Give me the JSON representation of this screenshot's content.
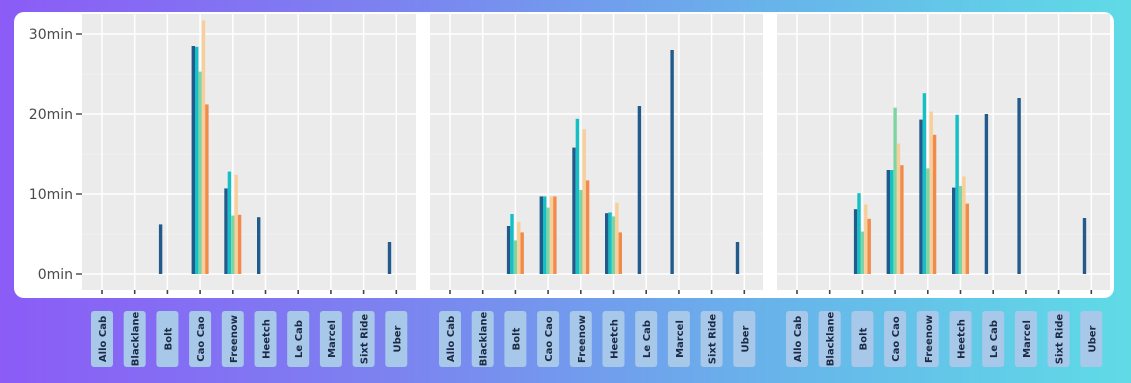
{
  "chart_data": {
    "type": "bar",
    "categories": [
      "Allo Cab",
      "Blacklane",
      "Bolt",
      "Cao Cao",
      "Freenow",
      "Heetch",
      "Le Cab",
      "Marcel",
      "Sixt Ride",
      "Uber"
    ],
    "y_ticks": [
      "0min",
      "10min",
      "20min",
      "30min"
    ],
    "ylim": [
      -2,
      32.5
    ],
    "grid": true,
    "series_colors": [
      "#235a8c",
      "#12c0c6",
      "#7fd4a6",
      "#f8cf9a",
      "#f28a4c"
    ],
    "panels": [
      {
        "series": [
          {
            "values": [
              null,
              null,
              6.2,
              28.5,
              10.7,
              7.1,
              null,
              null,
              null,
              4.0
            ]
          },
          {
            "values": [
              null,
              null,
              null,
              28.4,
              12.8,
              null,
              null,
              null,
              null,
              null
            ]
          },
          {
            "values": [
              null,
              null,
              null,
              25.3,
              7.3,
              null,
              null,
              null,
              null,
              null
            ]
          },
          {
            "values": [
              null,
              null,
              null,
              31.7,
              12.4,
              null,
              null,
              null,
              null,
              null
            ]
          },
          {
            "values": [
              null,
              null,
              null,
              21.2,
              7.4,
              null,
              null,
              null,
              null,
              null
            ]
          }
        ]
      },
      {
        "series": [
          {
            "values": [
              null,
              null,
              6.0,
              9.7,
              15.8,
              7.6,
              21.0,
              28.0,
              null,
              4.0
            ]
          },
          {
            "values": [
              null,
              null,
              7.5,
              9.7,
              19.4,
              7.7,
              null,
              null,
              null,
              null
            ]
          },
          {
            "values": [
              null,
              null,
              4.2,
              8.3,
              10.5,
              7.2,
              null,
              null,
              null,
              null
            ]
          },
          {
            "values": [
              null,
              null,
              6.5,
              9.7,
              18.1,
              8.9,
              null,
              null,
              null,
              null
            ]
          },
          {
            "values": [
              null,
              null,
              5.2,
              9.7,
              11.7,
              5.2,
              null,
              null,
              null,
              null
            ]
          }
        ]
      },
      {
        "series": [
          {
            "values": [
              null,
              null,
              8.1,
              13.0,
              19.3,
              10.8,
              20.0,
              22.0,
              null,
              7.0
            ]
          },
          {
            "values": [
              null,
              null,
              10.1,
              13.0,
              22.6,
              19.9,
              null,
              null,
              null,
              null
            ]
          },
          {
            "values": [
              null,
              null,
              5.3,
              20.8,
              13.2,
              11.0,
              null,
              null,
              null,
              null
            ]
          },
          {
            "values": [
              null,
              null,
              8.7,
              16.3,
              20.3,
              12.2,
              null,
              null,
              null,
              null
            ]
          },
          {
            "values": [
              null,
              null,
              6.9,
              13.6,
              17.4,
              8.8,
              null,
              null,
              null,
              null
            ]
          }
        ]
      }
    ]
  }
}
